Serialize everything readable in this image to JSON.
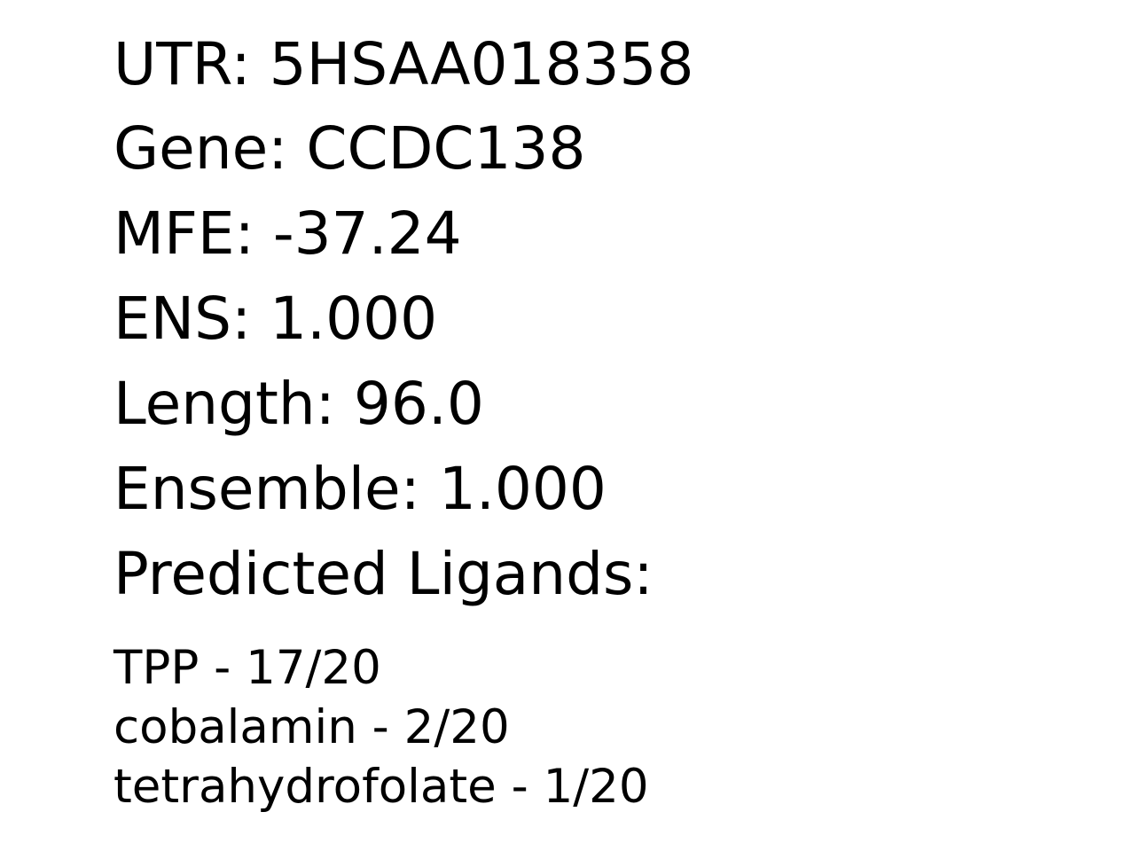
{
  "fields": {
    "utr": "UTR: 5HSAA018358",
    "gene": "Gene: CCDC138",
    "mfe": "MFE: -37.24",
    "ens": "ENS: 1.000",
    "length": "Length: 96.0",
    "ensemble": "Ensemble: 1.000",
    "ligands_heading": "Predicted Ligands:"
  },
  "ligands": [
    "TPP - 17/20",
    "cobalamin - 2/20",
    "tetrahydrofolate - 1/20"
  ]
}
